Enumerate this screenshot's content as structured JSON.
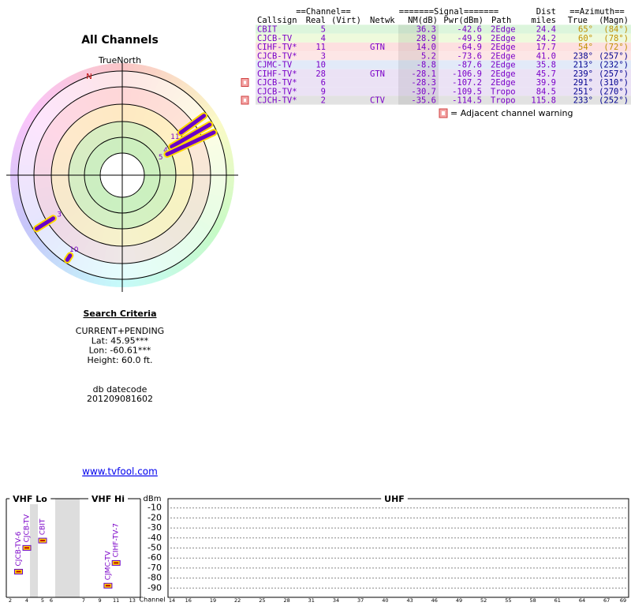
{
  "polar": {
    "title": "All Channels",
    "north_label": "TrueNorth",
    "magnetic_north": "N",
    "markers": [
      {
        "label": "11",
        "azimuth": 54,
        "nm": 14.0
      },
      {
        "label": "4",
        "azimuth": 60,
        "nm": 28.9
      },
      {
        "label": "5",
        "azimuth": 65,
        "nm": 36.3
      },
      {
        "label": "3",
        "azimuth": 238,
        "nm": 5.2
      },
      {
        "label": "10",
        "azimuth": 213,
        "nm": -8.8
      }
    ]
  },
  "search": {
    "title": "Search Criteria",
    "lines": [
      "CURRENT+PENDING",
      "Lat: 45.95***",
      "Lon: -60.61***",
      "Height: 60.0 ft."
    ]
  },
  "datecode": {
    "label": "db datecode",
    "value": "201209081602"
  },
  "link": "www.tvfool.com",
  "table": {
    "group_headers": [
      "==Channel==",
      "=======Signal=======",
      "Dist",
      "==Azimuth=="
    ],
    "columns": [
      "Callsign",
      "Real",
      "(Virt)",
      "Netwk",
      "NM(dB)",
      "Pwr(dBm)",
      "Path",
      "miles",
      "True",
      "(Magn)"
    ],
    "rows": [
      {
        "cells": [
          "CBIT",
          "5",
          null,
          null,
          "36.3",
          "-42.6",
          "2Edge",
          "24.4",
          "65°",
          "(84°)"
        ]
      },
      {
        "cells": [
          "CJCB-TV",
          "4",
          null,
          null,
          "28.9",
          "-49.9",
          "2Edge",
          "24.2",
          "60°",
          "(78°)"
        ]
      },
      {
        "cells": [
          "CIHF-TV*",
          "11",
          null,
          "GTN",
          "14.0",
          "-64.9",
          "2Edge",
          "17.7",
          "54°",
          "(72°)"
        ]
      },
      {
        "cells": [
          "CJCB-TV*",
          "3",
          null,
          null,
          "5.2",
          "-73.6",
          "2Edge",
          "41.0",
          "238°",
          "(257°)"
        ]
      },
      {
        "cells": [
          "CJMC-TV",
          "10",
          null,
          null,
          "-8.8",
          "-87.6",
          "2Edge",
          "35.8",
          "213°",
          "(232°)"
        ]
      },
      {
        "cells": [
          "CIHF-TV*",
          "28",
          null,
          "GTN",
          "-28.1",
          "-106.9",
          "2Edge",
          "45.7",
          "239°",
          "(257°)"
        ]
      },
      {
        "cells": [
          "CJCB-TV*",
          "6",
          null,
          null,
          "-28.3",
          "-107.2",
          "2Edge",
          "39.9",
          "291°",
          "(310°)"
        ],
        "warning": true
      },
      {
        "cells": [
          "CJCB-TV*",
          "9",
          null,
          null,
          "-30.7",
          "-109.5",
          "Tropo",
          "84.5",
          "251°",
          "(270°)"
        ]
      },
      {
        "cells": [
          "CJCH-TV*",
          "2",
          null,
          "CTV",
          "-35.6",
          "-114.5",
          "Tropo",
          "115.8",
          "233°",
          "(252°)"
        ],
        "warning": true
      }
    ],
    "warning_note": "= Adjacent channel warning"
  },
  "chart_data": {
    "type": "bar",
    "y_label": "dBm",
    "x_label": "Channel",
    "bands": [
      "VHF Lo",
      "VHF Hi",
      "UHF"
    ],
    "x": [
      3,
      4,
      5,
      10,
      11
    ],
    "values": [
      -73.6,
      -49.9,
      -42.6,
      -87.6,
      -64.9
    ],
    "bar_labels": [
      "CJCB-TV-6",
      "CJCB-TV",
      "CBIT",
      "CJMC-TV",
      "CIHF-TV-7"
    ],
    "ylim": [
      -100,
      0
    ],
    "yticks": [
      -10,
      -20,
      -30,
      -40,
      -50,
      -60,
      -70,
      -80,
      -90
    ],
    "xticks": [
      2,
      4,
      5,
      6,
      7,
      9,
      11,
      13,
      14,
      16,
      19,
      22,
      25,
      28,
      31,
      34,
      37,
      40,
      43,
      46,
      49,
      52,
      55,
      58,
      61,
      64,
      67,
      69
    ]
  }
}
